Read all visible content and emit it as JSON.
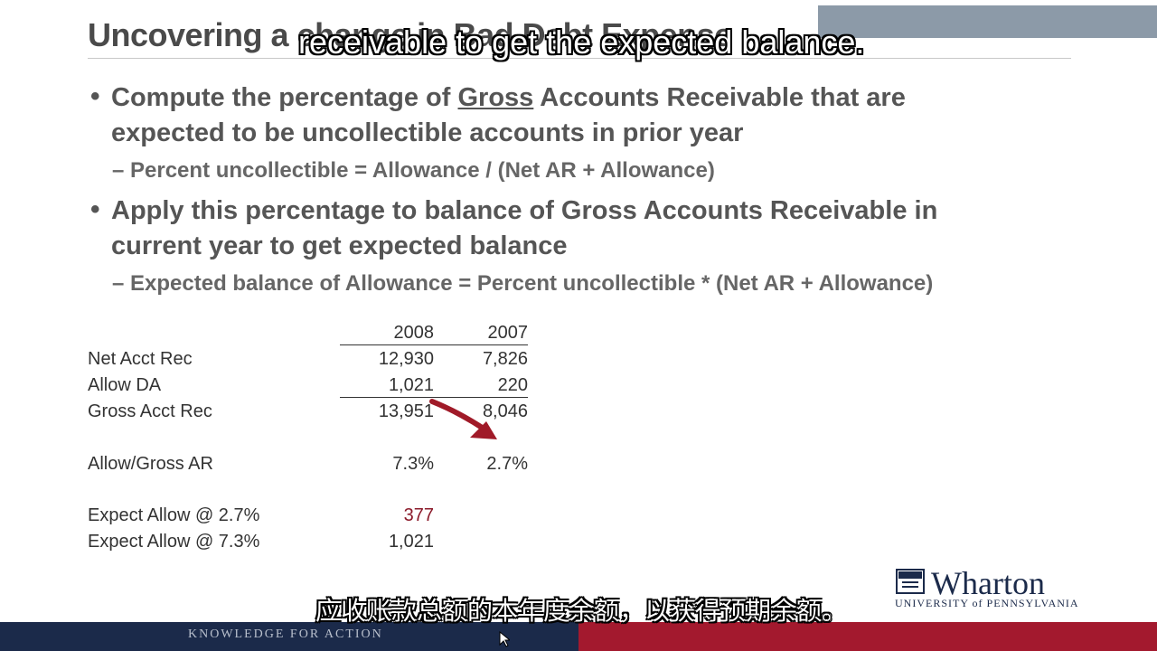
{
  "slide": {
    "title": "Uncovering a change in Bad Debt Expense",
    "caption_top": "receivable to get the expected balance.",
    "caption_bottom": "应收账款总额的本年度余额，以获得预期余额。",
    "bullets": [
      {
        "pre": "Compute the percentage of ",
        "underlined": "Gross",
        "post": " Accounts Receivable that are",
        "line2": "expected to be uncollectible accounts in prior year",
        "sub": "– Percent uncollectible = Allowance / (Net AR + Allowance)"
      },
      {
        "line1": "Apply this percentage to balance of Gross Accounts Receivable in",
        "line2": "current year to get expected balance",
        "sub": "– Expected balance of Allowance = Percent uncollectible * (Net AR + Allowance)"
      }
    ]
  },
  "table": {
    "headers": [
      "2008",
      "2007"
    ],
    "rows": [
      {
        "label": "Net Acct Rec",
        "v2008": "12,930",
        "v2007": "7,826"
      },
      {
        "label": "Allow DA",
        "v2008": "1,021",
        "v2007": "220"
      },
      {
        "label": "Gross Acct Rec",
        "v2008": "13,951",
        "v2007": "8,046"
      },
      {
        "label": "Allow/Gross AR",
        "v2008": "7.3%",
        "v2007": "2.7%"
      },
      {
        "label": "Expect Allow @ 2.7%",
        "v2008": "377",
        "v2007": ""
      },
      {
        "label": "Expect Allow @ 7.3%",
        "v2008": "1,021",
        "v2007": ""
      }
    ]
  },
  "branding": {
    "logo_name": "Wharton",
    "logo_sub": "UNIVERSITY of PENNSYLVANIA",
    "footer_tagline": "KNOWLEDGE FOR ACTION"
  },
  "colors": {
    "accent_red": "#a3192e",
    "navy": "#1b2a4a",
    "highlight_value": "#8b1a2a"
  }
}
